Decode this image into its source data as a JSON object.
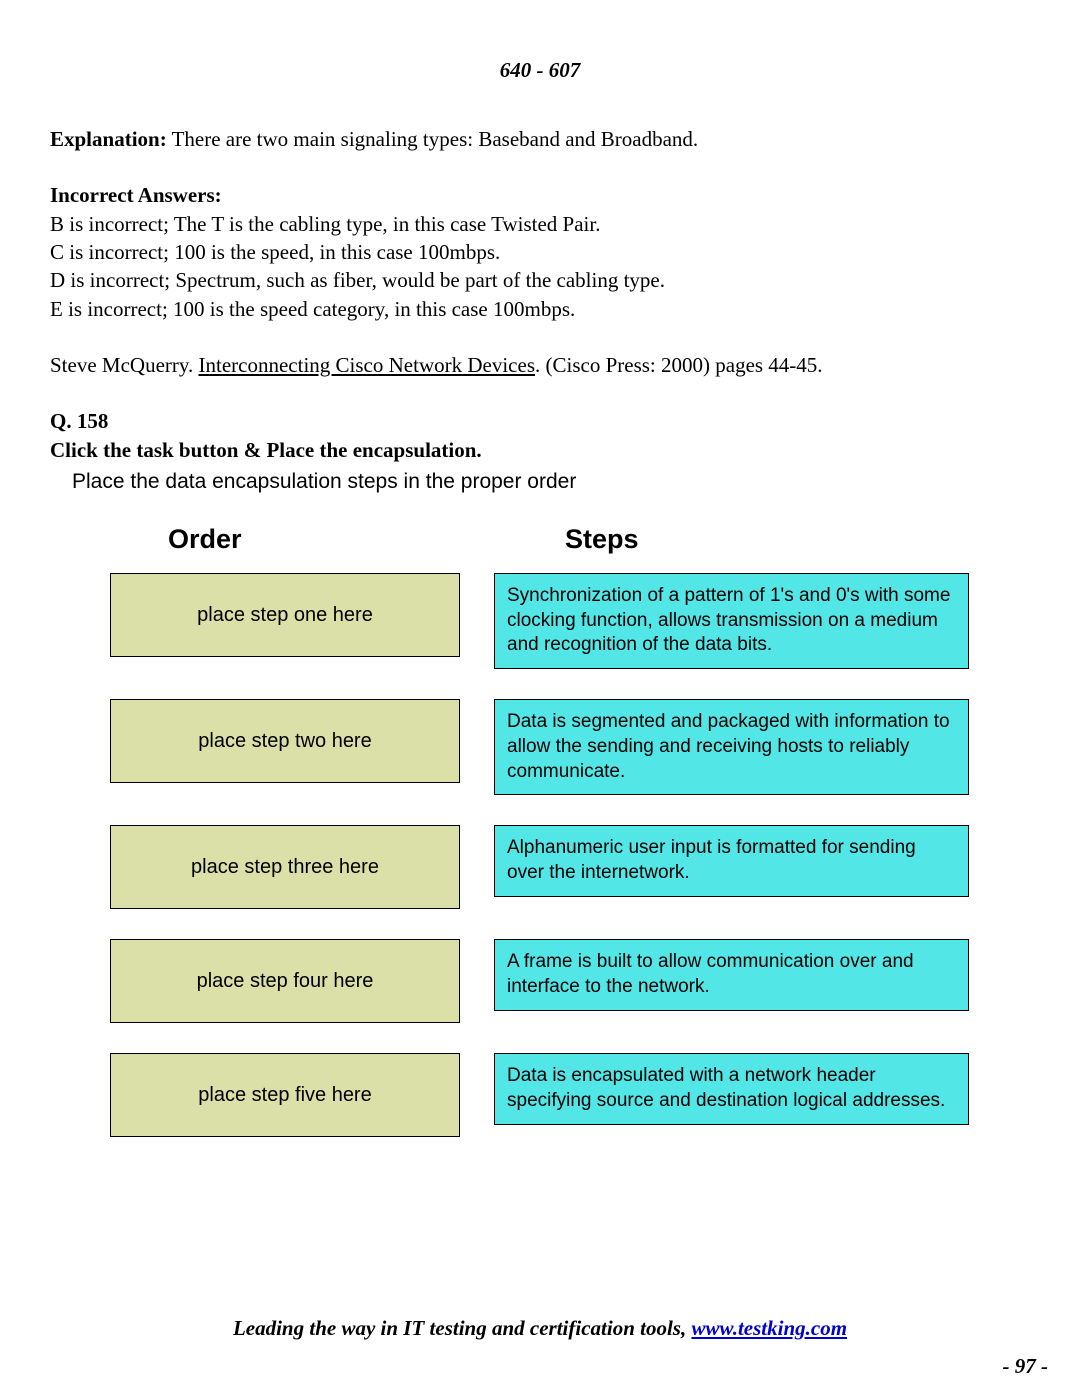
{
  "header_code": "640 - 607",
  "explanation_label": "Explanation:",
  "explanation_text": " There are two main signaling types: Baseband and Broadband.",
  "incorrect_label": "Incorrect Answers:",
  "incorrect_lines": [
    "B is incorrect; The T is the cabling type, in this case Twisted Pair.",
    "C is incorrect; 100 is the speed, in this case 100mbps.",
    "D is incorrect; Spectrum, such as fiber, would be part of the cabling type.",
    "E is incorrect; 100 is the speed category, in this case 100mbps."
  ],
  "citation_author": "Steve McQuerry.  ",
  "citation_title": "Interconnecting Cisco Network Devices",
  "citation_rest": ". (Cisco Press: 2000) pages  44-45.",
  "question_num": "Q. 158",
  "question_text": "Click the task button & Place the encapsulation.",
  "instruction": "Place the data encapsulation steps in the proper order",
  "col_headers": {
    "order": "Order",
    "steps": "Steps"
  },
  "colors": {
    "order_bg": "#dbe0a8",
    "step_bg": "#52e6e6",
    "border": "#000000"
  },
  "rows": [
    {
      "order": "place step one here",
      "step": "Synchronization of a pattern of 1's and 0's with some clocking function, allows transmission on a medium and recognition of the data bits."
    },
    {
      "order": "place step two here",
      "step": "Data is segmented and packaged with information to allow the sending and receiving hosts to reliably communicate."
    },
    {
      "order": "place step three here",
      "step": "Alphanumeric user input is formatted for sending over the internetwork."
    },
    {
      "order": "place step four here",
      "step": "A frame is built to allow communication over and interface to the network."
    },
    {
      "order": "place step five here",
      "step": "Data is encapsulated with a network header specifying source and destination logical addresses."
    }
  ],
  "footer_lead": "Leading the way in IT testing and certification tools, ",
  "footer_link_text": "www.testking.com",
  "page_number": "- 97 -"
}
